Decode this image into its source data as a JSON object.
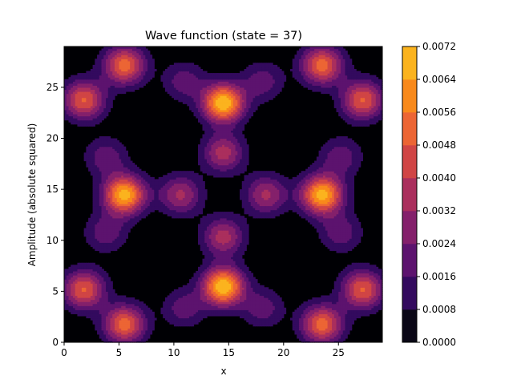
{
  "chart_data": {
    "type": "heatmap",
    "title": "Wave function (state = 37)",
    "xlabel": "x",
    "ylabel": "Amplitude (absolute squared)",
    "xlim": [
      0,
      29
    ],
    "ylim": [
      0,
      29
    ],
    "x_ticks": [
      0,
      5,
      10,
      15,
      20,
      25
    ],
    "x_tick_labels": [
      "0",
      "5",
      "10",
      "15",
      "20",
      "25"
    ],
    "y_ticks": [
      0,
      5,
      10,
      15,
      20,
      25
    ],
    "y_tick_labels": [
      "0",
      "5",
      "10",
      "15",
      "20",
      "25"
    ],
    "grid": false,
    "colormap": "inferno",
    "colorbar": {
      "levels": [
        0.0,
        0.0008,
        0.0016,
        0.0024,
        0.0032,
        0.004,
        0.0048,
        0.0056,
        0.0064,
        0.0072
      ],
      "tick_labels": [
        "0.0000",
        "0.0008",
        "0.0016",
        "0.0024",
        "0.0032",
        "0.0040",
        "0.0048",
        "0.0056",
        "0.0064",
        "0.0072"
      ],
      "band_colors": [
        "#0a0716",
        "#330a5e",
        "#5c136e",
        "#84206b",
        "#aa2f5d",
        "#d04545",
        "#ec6534",
        "#f8891b",
        "#fbb31e",
        "#f2ea69"
      ]
    },
    "peaks": [
      {
        "x": 14.5,
        "y": 23.5,
        "value": 0.0071
      },
      {
        "x": 14.5,
        "y": 5.5,
        "value": 0.0071
      },
      {
        "x": 5.5,
        "y": 14.5,
        "value": 0.0068
      },
      {
        "x": 23.5,
        "y": 14.5,
        "value": 0.0068
      },
      {
        "x": 5.5,
        "y": 27.2,
        "value": 0.0052
      },
      {
        "x": 23.5,
        "y": 27.2,
        "value": 0.0052
      },
      {
        "x": 5.5,
        "y": 1.8,
        "value": 0.0052
      },
      {
        "x": 23.5,
        "y": 1.8,
        "value": 0.0052
      },
      {
        "x": 1.8,
        "y": 23.8,
        "value": 0.0049
      },
      {
        "x": 27.2,
        "y": 23.8,
        "value": 0.0049
      },
      {
        "x": 1.8,
        "y": 5.2,
        "value": 0.0049
      },
      {
        "x": 27.2,
        "y": 5.2,
        "value": 0.0049
      },
      {
        "x": 14.5,
        "y": 18.6,
        "value": 0.0036
      },
      {
        "x": 14.5,
        "y": 10.4,
        "value": 0.0036
      },
      {
        "x": 10.6,
        "y": 14.5,
        "value": 0.0034
      },
      {
        "x": 18.4,
        "y": 14.5,
        "value": 0.0034
      },
      {
        "x": 3.8,
        "y": 18.2,
        "value": 0.0022
      },
      {
        "x": 25.2,
        "y": 18.2,
        "value": 0.0022
      },
      {
        "x": 3.8,
        "y": 10.8,
        "value": 0.0022
      },
      {
        "x": 25.2,
        "y": 10.8,
        "value": 0.0022
      },
      {
        "x": 10.9,
        "y": 25.6,
        "value": 0.0021
      },
      {
        "x": 18.1,
        "y": 25.6,
        "value": 0.0021
      },
      {
        "x": 10.9,
        "y": 3.4,
        "value": 0.0021
      },
      {
        "x": 18.1,
        "y": 3.4,
        "value": 0.0021
      }
    ]
  }
}
